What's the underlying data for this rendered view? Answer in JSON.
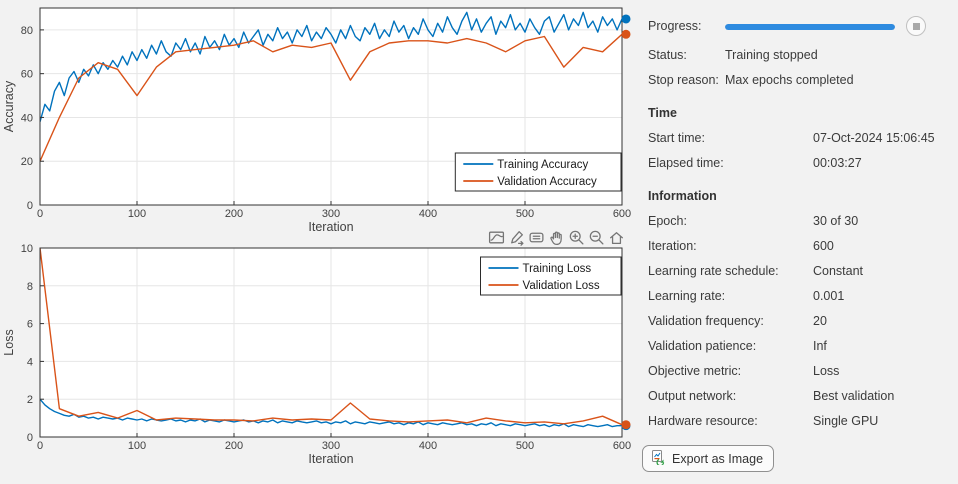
{
  "panel": {
    "progress_label": "Progress:",
    "progress_percent": 100,
    "status_label": "Status:",
    "status_value": "Training stopped",
    "stop_reason_label": "Stop reason:",
    "stop_reason_value": "Max epochs completed",
    "time_header": "Time",
    "rows_time": [
      {
        "label": "Start time:",
        "value": "07-Oct-2024 15:06:45"
      },
      {
        "label": "Elapsed time:",
        "value": "00:03:27"
      }
    ],
    "info_header": "Information",
    "rows_info": [
      {
        "label": "Epoch:",
        "value": "30 of 30"
      },
      {
        "label": "Iteration:",
        "value": "600"
      },
      {
        "label": "Learning rate schedule:",
        "value": "Constant"
      },
      {
        "label": "Learning rate:",
        "value": "0.001"
      },
      {
        "label": "Validation frequency:",
        "value": "20"
      },
      {
        "label": "Validation patience:",
        "value": "Inf"
      },
      {
        "label": "Objective metric:",
        "value": "Loss"
      },
      {
        "label": "Output network:",
        "value": "Best validation"
      },
      {
        "label": "Hardware resource:",
        "value": "Single GPU"
      }
    ],
    "export_button_label": "Export as Image"
  },
  "toolbar": {
    "icons": [
      "export-plot",
      "brush",
      "data-tips",
      "pan",
      "zoom-in",
      "zoom-out",
      "restore-view"
    ]
  },
  "colors": {
    "training": "#0072BD",
    "validation": "#D95319",
    "progress": "#2E8BE0",
    "grid": "#e6e6e6",
    "axis": "#333333",
    "tick_text": "#424242",
    "toolbar_icon": "#757575"
  },
  "chart_data": [
    {
      "type": "line",
      "title": "",
      "xlabel": "Iteration",
      "ylabel": "Accuracy",
      "xlim": [
        0,
        600
      ],
      "ylim": [
        0,
        90
      ],
      "xticks": [
        0,
        100,
        200,
        300,
        400,
        500,
        600
      ],
      "yticks": [
        0,
        20,
        40,
        60,
        80
      ],
      "grid": true,
      "legend_position": "southeast-inside",
      "end_markers": true,
      "series": [
        {
          "name": "Training Accuracy",
          "color": "#0072BD",
          "x_step": 5,
          "values": [
            38,
            46,
            43,
            52,
            56,
            50,
            58,
            61,
            56,
            62,
            59,
            64,
            60,
            65,
            62,
            66,
            63,
            68,
            64,
            70,
            66,
            71,
            67,
            73,
            69,
            75,
            70,
            68,
            74,
            71,
            76,
            70,
            74,
            69,
            77,
            72,
            75,
            71,
            78,
            73,
            76,
            72,
            79,
            74,
            77,
            80,
            73,
            78,
            75,
            81,
            76,
            79,
            74,
            80,
            77,
            82,
            75,
            79,
            76,
            81,
            78,
            74,
            80,
            76,
            82,
            77,
            75,
            81,
            78,
            83,
            76,
            80,
            77,
            84,
            79,
            82,
            76,
            81,
            78,
            85,
            80,
            77,
            83,
            79,
            86,
            81,
            78,
            84,
            88,
            80,
            85,
            79,
            83,
            86,
            78,
            84,
            81,
            87,
            80,
            83,
            79,
            85,
            81,
            78,
            84,
            86,
            79,
            83,
            87,
            80,
            85,
            82,
            88,
            81,
            84,
            79,
            86,
            82,
            85,
            80,
            85
          ]
        },
        {
          "name": "Validation Accuracy",
          "color": "#D95319",
          "x_step": 20,
          "values": [
            20,
            40,
            58,
            65,
            62,
            50,
            63,
            70,
            71,
            72,
            73,
            75,
            70,
            73,
            72,
            74,
            57,
            70,
            74,
            75,
            75,
            74,
            76,
            74,
            70,
            75,
            77,
            63,
            72,
            70,
            78
          ]
        }
      ]
    },
    {
      "type": "line",
      "title": "",
      "xlabel": "Iteration",
      "ylabel": "Loss",
      "xlim": [
        0,
        600
      ],
      "ylim": [
        0,
        10
      ],
      "xticks": [
        0,
        100,
        200,
        300,
        400,
        500,
        600
      ],
      "yticks": [
        0,
        2,
        4,
        6,
        8,
        10
      ],
      "grid": true,
      "legend_position": "northeast-inside",
      "end_markers": true,
      "series": [
        {
          "name": "Training Loss",
          "color": "#0072BD",
          "x_step": 5,
          "values": [
            2.0,
            1.7,
            1.5,
            1.35,
            1.25,
            1.15,
            1.1,
            1.2,
            1.05,
            1.1,
            1.0,
            1.05,
            0.95,
            1.05,
            1.0,
            0.95,
            1.0,
            0.9,
            1.0,
            0.95,
            0.9,
            0.95,
            0.85,
            0.95,
            0.9,
            0.85,
            0.9,
            0.95,
            0.85,
            0.9,
            0.8,
            0.9,
            0.85,
            0.95,
            0.8,
            0.9,
            0.85,
            0.8,
            0.9,
            0.85,
            0.8,
            0.85,
            0.9,
            0.8,
            0.85,
            0.75,
            0.85,
            0.8,
            0.9,
            0.75,
            0.85,
            0.8,
            0.75,
            0.85,
            0.8,
            0.75,
            0.8,
            0.85,
            0.75,
            0.8,
            0.7,
            0.8,
            0.75,
            0.85,
            0.7,
            0.8,
            0.75,
            0.7,
            0.8,
            0.75,
            0.7,
            0.75,
            0.8,
            0.7,
            0.75,
            0.65,
            0.75,
            0.7,
            0.8,
            0.65,
            0.75,
            0.7,
            0.65,
            0.75,
            0.7,
            0.65,
            0.7,
            0.75,
            0.65,
            0.7,
            0.6,
            0.7,
            0.65,
            0.75,
            0.6,
            0.7,
            0.65,
            0.6,
            0.7,
            0.65,
            0.6,
            0.65,
            0.7,
            0.6,
            0.65,
            0.55,
            0.65,
            0.6,
            0.7,
            0.55,
            0.65,
            0.6,
            0.55,
            0.65,
            0.6,
            0.55,
            0.6,
            0.65,
            0.55,
            0.6,
            0.6
          ]
        },
        {
          "name": "Validation Loss",
          "color": "#D95319",
          "x_step": 20,
          "values": [
            10,
            1.5,
            1.1,
            1.3,
            1.0,
            1.4,
            0.9,
            1.0,
            0.95,
            0.9,
            0.9,
            0.85,
            1.0,
            0.9,
            0.95,
            0.9,
            1.8,
            0.95,
            0.85,
            0.8,
            0.85,
            0.9,
            0.75,
            1.0,
            0.85,
            0.75,
            0.8,
            0.7,
            0.85,
            1.1,
            0.65
          ]
        }
      ]
    }
  ]
}
